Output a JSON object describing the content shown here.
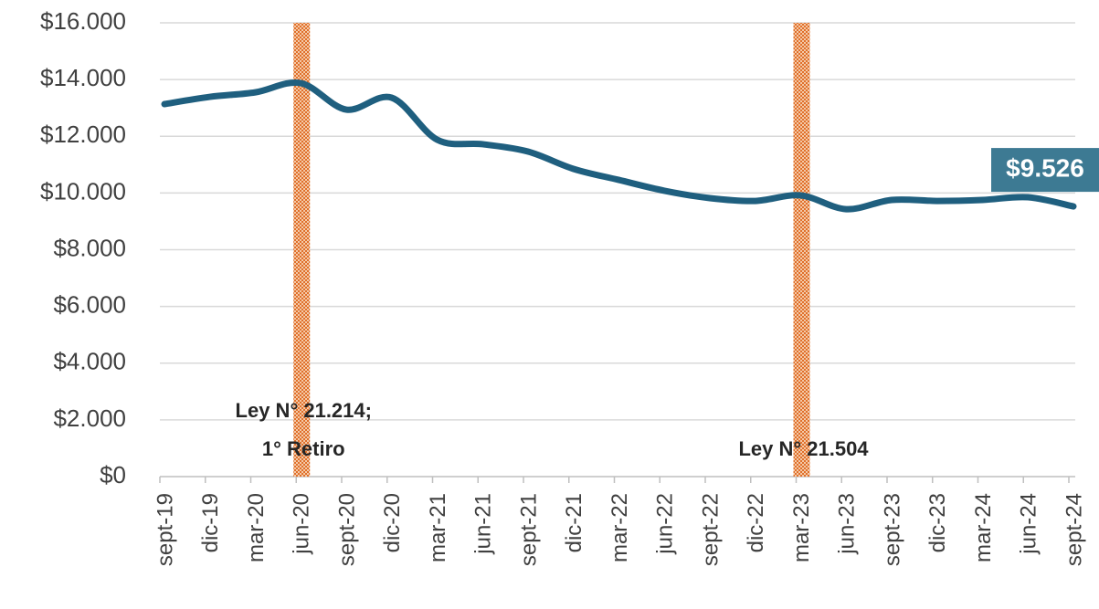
{
  "chart_data": {
    "type": "line",
    "categories": [
      "sept-19",
      "dic-19",
      "mar-20",
      "jun-20",
      "sept-20",
      "dic-20",
      "mar-21",
      "jun-21",
      "sept-21",
      "dic-21",
      "mar-22",
      "jun-22",
      "sept-22",
      "dic-22",
      "mar-23",
      "jun-23",
      "sept-23",
      "dic-23",
      "mar-24",
      "jun-24",
      "sept-24"
    ],
    "series": [
      {
        "color": "#1f5f7f",
        "values": [
          13135,
          13390,
          13550,
          13875,
          12940,
          13360,
          11880,
          11720,
          11460,
          10850,
          10460,
          10080,
          9820,
          9720,
          9915,
          9430,
          9755,
          9720,
          9755,
          9850,
          9526
        ],
        "value_labels": [
          null,
          null,
          null,
          null,
          null,
          null,
          null,
          null,
          null,
          null,
          null,
          null,
          null,
          null,
          null,
          null,
          null,
          null,
          null,
          null,
          "$9.526"
        ]
      }
    ],
    "ylim": [
      0,
      16000
    ],
    "yticks": [
      {
        "value": 0,
        "label": "$0"
      },
      {
        "value": 2000,
        "label": "$2.000"
      },
      {
        "value": 4000,
        "label": "$4.000"
      },
      {
        "value": 6000,
        "label": "$6.000"
      },
      {
        "value": 8000,
        "label": "$8.000"
      },
      {
        "value": 10000,
        "label": "$10.000"
      },
      {
        "value": 12000,
        "label": "$12.000"
      },
      {
        "value": 14000,
        "label": "$14.000"
      },
      {
        "value": 16000,
        "label": "$16.000"
      }
    ],
    "grid": true,
    "annotations": [
      {
        "category": "jun-20",
        "lines": [
          "Ley N° 21.214;",
          "1° Retiro"
        ]
      },
      {
        "category": "mar-23",
        "lines": [
          "Ley N° 21.504"
        ]
      }
    ]
  }
}
